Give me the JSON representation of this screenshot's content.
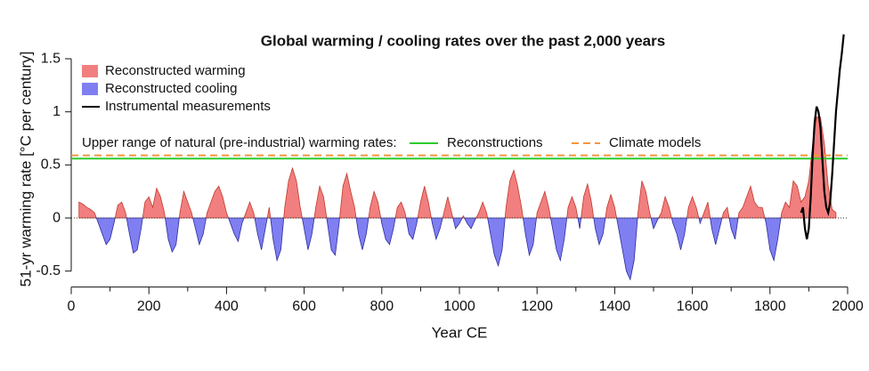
{
  "chart_data": {
    "type": "area",
    "title": "Global warming / cooling rates over the past 2,000 years",
    "x_label": "Year CE",
    "y_label": "51-yr warming rate [°C per century]",
    "annotation": "Upper range of natural (pre-industrial) warming rates:",
    "xlim": [
      0,
      2000
    ],
    "xticks": [
      0,
      200,
      400,
      600,
      800,
      1000,
      1200,
      1400,
      1600,
      1800,
      2000
    ],
    "xminor_ticks": [
      100,
      300,
      500,
      700,
      900,
      1100,
      1300,
      1500,
      1700,
      1900
    ],
    "ylim": [
      -0.65,
      1.75
    ],
    "yticks": [
      -0.5,
      0,
      0.5,
      1,
      1.5
    ],
    "legend": "top-left",
    "x": [
      20,
      30,
      40,
      50,
      60,
      70,
      80,
      90,
      100,
      110,
      120,
      130,
      140,
      150,
      160,
      170,
      180,
      190,
      200,
      210,
      220,
      230,
      240,
      250,
      260,
      270,
      280,
      290,
      300,
      310,
      320,
      330,
      340,
      350,
      360,
      370,
      380,
      390,
      400,
      410,
      420,
      430,
      440,
      450,
      460,
      470,
      480,
      490,
      500,
      510,
      520,
      530,
      540,
      550,
      560,
      570,
      580,
      590,
      600,
      610,
      620,
      630,
      640,
      650,
      660,
      670,
      680,
      690,
      700,
      710,
      720,
      730,
      740,
      750,
      760,
      770,
      780,
      790,
      800,
      810,
      820,
      830,
      840,
      850,
      860,
      870,
      880,
      890,
      900,
      910,
      920,
      930,
      940,
      950,
      960,
      970,
      980,
      990,
      1000,
      1010,
      1020,
      1030,
      1040,
      1050,
      1060,
      1070,
      1080,
      1090,
      1100,
      1110,
      1120,
      1130,
      1140,
      1150,
      1160,
      1170,
      1180,
      1190,
      1200,
      1210,
      1220,
      1230,
      1240,
      1250,
      1260,
      1270,
      1280,
      1290,
      1300,
      1310,
      1320,
      1330,
      1340,
      1350,
      1360,
      1370,
      1380,
      1390,
      1400,
      1410,
      1420,
      1430,
      1440,
      1450,
      1460,
      1470,
      1480,
      1490,
      1500,
      1510,
      1520,
      1530,
      1540,
      1550,
      1560,
      1570,
      1580,
      1590,
      1600,
      1610,
      1620,
      1630,
      1640,
      1650,
      1660,
      1670,
      1680,
      1690,
      1700,
      1710,
      1720,
      1730,
      1740,
      1750,
      1760,
      1770,
      1780,
      1790,
      1800,
      1810,
      1820,
      1830,
      1840,
      1850,
      1860,
      1870,
      1880,
      1890,
      1900,
      1910,
      1920,
      1930,
      1940,
      1950,
      1960,
      1970
    ],
    "series": [
      {
        "name": "Reconstructed warming",
        "color": "#f27f7f",
        "edge": "#c0392b",
        "values": [
          0.15,
          0.13,
          0.1,
          0.08,
          0.05,
          null,
          null,
          null,
          null,
          null,
          0.12,
          0.15,
          0.05,
          null,
          null,
          null,
          null,
          0.15,
          0.2,
          0.1,
          0.28,
          0.2,
          0.05,
          null,
          null,
          null,
          0.05,
          0.25,
          0.15,
          0.05,
          null,
          null,
          null,
          0.05,
          0.15,
          0.25,
          0.3,
          0.2,
          0.05,
          null,
          null,
          null,
          null,
          0.05,
          0.15,
          0.05,
          null,
          null,
          null,
          0.1,
          null,
          null,
          null,
          0.1,
          0.35,
          0.47,
          0.35,
          0.1,
          null,
          null,
          null,
          0.1,
          0.3,
          0.2,
          null,
          null,
          null,
          null,
          0.3,
          0.42,
          0.25,
          0.1,
          null,
          null,
          null,
          0.1,
          0.25,
          0.15,
          null,
          null,
          null,
          null,
          0.1,
          0.15,
          0.05,
          null,
          null,
          null,
          0.15,
          0.3,
          0.15,
          null,
          null,
          null,
          0.05,
          0.2,
          0.05,
          null,
          null,
          0.02,
          null,
          null,
          null,
          0.05,
          0.15,
          0.05,
          null,
          null,
          null,
          null,
          0.1,
          0.35,
          0.45,
          0.3,
          0.1,
          null,
          null,
          null,
          0.05,
          0.15,
          0.25,
          0.1,
          null,
          null,
          null,
          null,
          0.1,
          0.2,
          0.1,
          null,
          0.2,
          0.32,
          0.15,
          null,
          null,
          null,
          0.1,
          0.22,
          0.1,
          null,
          null,
          null,
          null,
          null,
          0.05,
          0.35,
          0.25,
          0.05,
          null,
          null,
          0.05,
          0.2,
          0.1,
          null,
          null,
          null,
          null,
          0.1,
          0.2,
          0.1,
          null,
          0.05,
          0.15,
          null,
          null,
          null,
          0.05,
          0.1,
          null,
          null,
          0.05,
          0.1,
          0.2,
          0.3,
          0.15,
          0.1,
          0.1,
          null,
          null,
          null,
          null,
          0.05,
          0.15,
          0.1,
          0.35,
          0.3,
          0.15,
          0.2,
          0.35,
          0.7,
          0.95,
          0.95,
          0.7,
          0.3,
          0.08,
          0.05
        ]
      },
      {
        "name": "Reconstructed cooling",
        "color": "#7f7ff2",
        "edge": "#2c2c9e",
        "values": [
          null,
          null,
          null,
          null,
          null,
          -0.05,
          -0.15,
          -0.25,
          -0.2,
          -0.05,
          null,
          null,
          null,
          -0.15,
          -0.33,
          -0.3,
          -0.1,
          null,
          null,
          null,
          null,
          null,
          null,
          -0.2,
          -0.32,
          -0.25,
          null,
          null,
          null,
          null,
          -0.1,
          -0.25,
          -0.15,
          null,
          null,
          null,
          null,
          null,
          null,
          -0.05,
          -0.15,
          -0.22,
          -0.05,
          null,
          null,
          null,
          -0.15,
          -0.3,
          -0.1,
          null,
          -0.2,
          -0.4,
          -0.3,
          null,
          null,
          null,
          null,
          null,
          -0.1,
          -0.3,
          -0.15,
          null,
          null,
          null,
          -0.05,
          -0.3,
          -0.35,
          -0.05,
          null,
          null,
          null,
          null,
          -0.15,
          -0.3,
          -0.15,
          null,
          null,
          null,
          -0.05,
          -0.2,
          -0.25,
          -0.1,
          null,
          null,
          null,
          -0.15,
          -0.2,
          -0.05,
          null,
          null,
          null,
          -0.05,
          -0.2,
          -0.1,
          null,
          null,
          null,
          -0.1,
          -0.05,
          null,
          -0.05,
          -0.1,
          -0.02,
          null,
          null,
          null,
          -0.15,
          -0.35,
          -0.45,
          -0.3,
          null,
          null,
          null,
          null,
          null,
          -0.15,
          -0.35,
          -0.25,
          null,
          null,
          null,
          null,
          -0.1,
          -0.3,
          -0.4,
          -0.2,
          null,
          null,
          null,
          -0.1,
          null,
          null,
          null,
          -0.1,
          -0.25,
          -0.15,
          null,
          null,
          null,
          -0.1,
          -0.3,
          -0.5,
          -0.58,
          -0.4,
          null,
          null,
          null,
          null,
          -0.1,
          -0.02,
          null,
          null,
          null,
          -0.05,
          -0.15,
          -0.3,
          -0.15,
          null,
          null,
          null,
          -0.05,
          null,
          null,
          -0.1,
          -0.25,
          -0.1,
          null,
          null,
          -0.1,
          -0.2,
          null,
          null,
          null,
          null,
          null,
          null,
          null,
          -0.05,
          -0.3,
          -0.4,
          -0.2,
          null,
          null,
          null,
          null,
          null,
          null,
          null,
          null,
          null,
          null,
          null,
          null,
          null,
          null,
          null
        ]
      },
      {
        "name": "Instrumental measurements",
        "color": "#000000",
        "x": [
          1880,
          1885,
          1890,
          1895,
          1900,
          1905,
          1910,
          1915,
          1920,
          1925,
          1930,
          1935,
          1940,
          1945,
          1950,
          1955,
          1960,
          1965,
          1970,
          1975,
          1980,
          1985,
          1990
        ],
        "values": [
          0.05,
          0.1,
          -0.1,
          -0.2,
          -0.1,
          0.2,
          0.6,
          0.9,
          1.05,
          1.0,
          0.85,
          0.55,
          0.25,
          0.1,
          0.05,
          0.15,
          0.4,
          0.7,
          1.0,
          1.2,
          1.4,
          1.55,
          1.73
        ]
      }
    ],
    "reference_lines": [
      {
        "name": "Reconstructions",
        "color": "#2ecc2e",
        "value": 0.56,
        "dashed": false
      },
      {
        "name": "Climate models",
        "color": "#f5963c",
        "value": 0.59,
        "dashed": true
      }
    ]
  }
}
